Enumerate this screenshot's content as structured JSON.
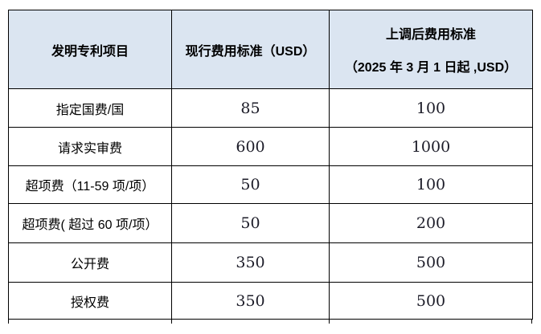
{
  "table": {
    "border_color": "#000000",
    "header_background": "#dbe5f1",
    "header": {
      "col1": "发明专利项目",
      "col2": "现行费用标准（USD）",
      "col3_line1": "上调后费用标准",
      "col3_line2": "（2025 年 3 月 1 日起 ,USD）"
    },
    "rows": [
      {
        "item": "指定国费/国",
        "current": "85",
        "adjusted": "100"
      },
      {
        "item": "请求实审费",
        "current": "600",
        "adjusted": "1000"
      },
      {
        "item": "超项费（11-59 项/项）",
        "current": "50",
        "adjusted": "100"
      },
      {
        "item": "超项费( 超过 60 项/项）",
        "current": "50",
        "adjusted": "200"
      },
      {
        "item": "公开费",
        "current": "350",
        "adjusted": "500"
      },
      {
        "item": "授权费",
        "current": "350",
        "adjusted": "500"
      }
    ]
  }
}
